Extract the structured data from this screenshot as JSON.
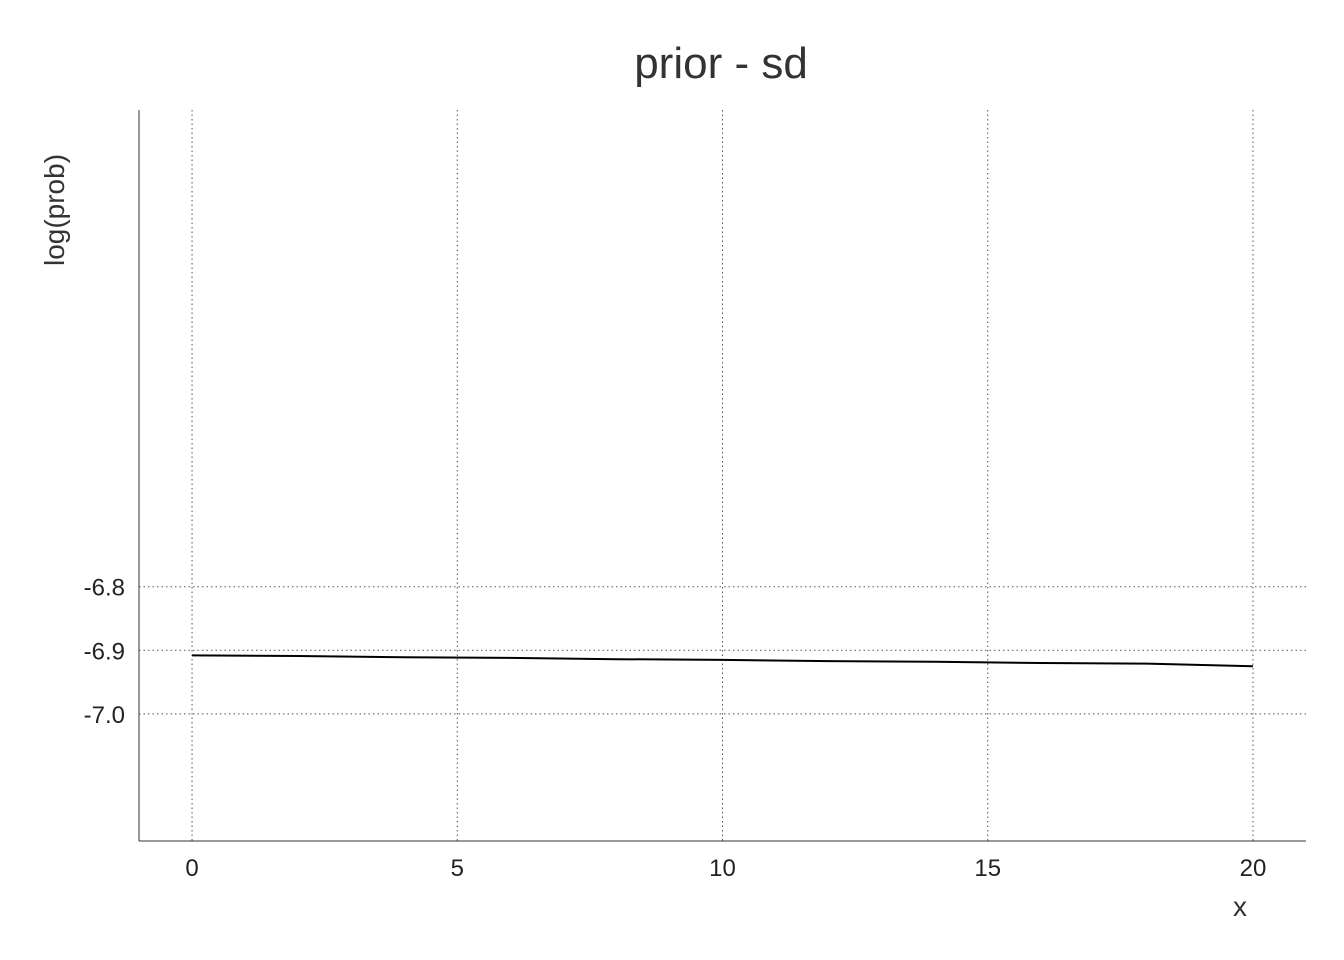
{
  "chart_data": {
    "type": "line",
    "title": "prior - sd",
    "xlabel": "x",
    "ylabel": "log(prob)",
    "xlim": [
      -1,
      21
    ],
    "ylim": [
      -7.2,
      -6.05
    ],
    "xticks": [
      0,
      5,
      10,
      15,
      20
    ],
    "xtick_labels": [
      "0",
      "5",
      "10",
      "15",
      "20"
    ],
    "yticks": [
      -6.8,
      -6.9,
      -7.0
    ],
    "ytick_labels": [
      "-6.8",
      "-6.9",
      "-7.0"
    ],
    "grid": true,
    "series": [
      {
        "x": [
          0,
          2,
          4,
          6,
          8,
          10,
          12,
          14,
          16,
          18,
          20
        ],
        "y": [
          -6.908,
          -6.909,
          -6.911,
          -6.912,
          -6.914,
          -6.915,
          -6.917,
          -6.918,
          -6.92,
          -6.921,
          -6.925
        ],
        "color": "#000000"
      }
    ]
  }
}
